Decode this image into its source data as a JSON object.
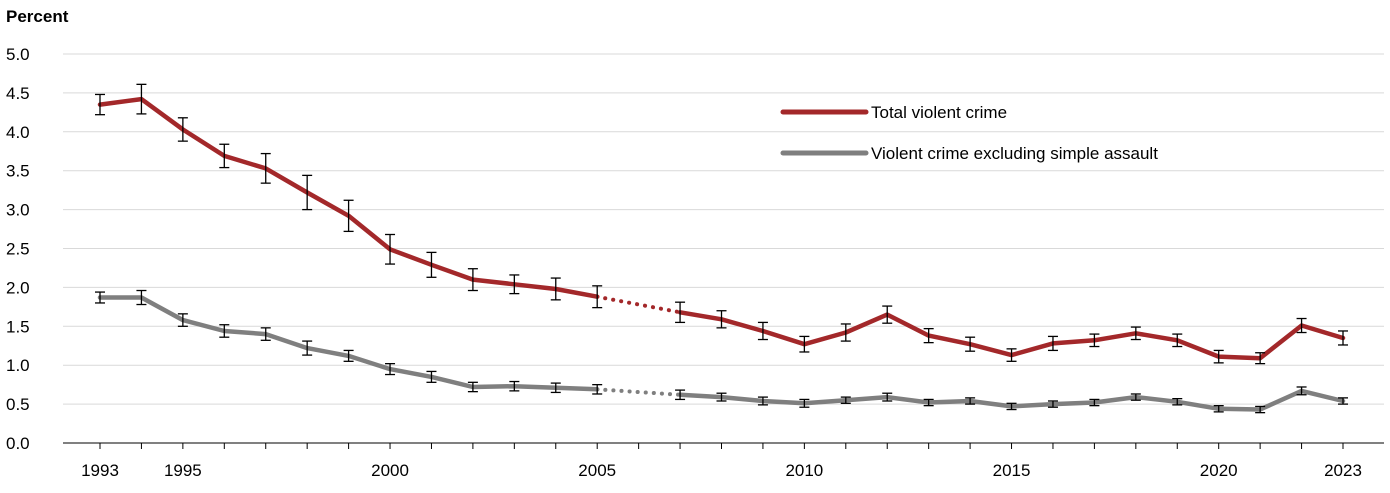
{
  "chart_data": {
    "type": "line",
    "ylabel": "Percent",
    "ylim": [
      0,
      5.0
    ],
    "yticks": [
      "0.0",
      "0.5",
      "1.0",
      "1.5",
      "2.0",
      "2.5",
      "3.0",
      "3.5",
      "4.0",
      "4.5",
      "5.0"
    ],
    "xlim": [
      1993,
      2023
    ],
    "xticks": [
      "1993",
      "1995",
      "2000",
      "2005",
      "2010",
      "2015",
      "2020",
      "2023"
    ],
    "grid": "horizontal",
    "legend_position": "top-right",
    "gap_years": [
      2006
    ],
    "error_bars": true,
    "series": [
      {
        "name": "Total violent crime",
        "color": "#a3282a",
        "points": [
          {
            "x": 1993,
            "y": 4.35,
            "lo": 4.22,
            "hi": 4.48
          },
          {
            "x": 1994,
            "y": 4.42,
            "lo": 4.23,
            "hi": 4.61
          },
          {
            "x": 1995,
            "y": 4.03,
            "lo": 3.88,
            "hi": 4.18
          },
          {
            "x": 1996,
            "y": 3.69,
            "lo": 3.54,
            "hi": 3.84
          },
          {
            "x": 1997,
            "y": 3.53,
            "lo": 3.34,
            "hi": 3.72
          },
          {
            "x": 1998,
            "y": 3.22,
            "lo": 3.0,
            "hi": 3.44
          },
          {
            "x": 1999,
            "y": 2.92,
            "lo": 2.72,
            "hi": 3.12
          },
          {
            "x": 2000,
            "y": 2.49,
            "lo": 2.3,
            "hi": 2.68
          },
          {
            "x": 2001,
            "y": 2.29,
            "lo": 2.13,
            "hi": 2.45
          },
          {
            "x": 2002,
            "y": 2.1,
            "lo": 1.96,
            "hi": 2.24
          },
          {
            "x": 2003,
            "y": 2.04,
            "lo": 1.92,
            "hi": 2.16
          },
          {
            "x": 2004,
            "y": 1.98,
            "lo": 1.84,
            "hi": 2.12
          },
          {
            "x": 2005,
            "y": 1.88,
            "lo": 1.74,
            "hi": 2.02
          },
          {
            "x": 2007,
            "y": 1.68,
            "lo": 1.55,
            "hi": 1.81
          },
          {
            "x": 2008,
            "y": 1.59,
            "lo": 1.48,
            "hi": 1.7
          },
          {
            "x": 2009,
            "y": 1.44,
            "lo": 1.33,
            "hi": 1.55
          },
          {
            "x": 2010,
            "y": 1.27,
            "lo": 1.17,
            "hi": 1.37
          },
          {
            "x": 2011,
            "y": 1.42,
            "lo": 1.31,
            "hi": 1.53
          },
          {
            "x": 2012,
            "y": 1.65,
            "lo": 1.54,
            "hi": 1.76
          },
          {
            "x": 2013,
            "y": 1.38,
            "lo": 1.29,
            "hi": 1.47
          },
          {
            "x": 2014,
            "y": 1.27,
            "lo": 1.18,
            "hi": 1.36
          },
          {
            "x": 2015,
            "y": 1.13,
            "lo": 1.05,
            "hi": 1.21
          },
          {
            "x": 2016,
            "y": 1.28,
            "lo": 1.19,
            "hi": 1.37
          },
          {
            "x": 2017,
            "y": 1.32,
            "lo": 1.24,
            "hi": 1.4
          },
          {
            "x": 2018,
            "y": 1.41,
            "lo": 1.33,
            "hi": 1.49
          },
          {
            "x": 2019,
            "y": 1.32,
            "lo": 1.24,
            "hi": 1.4
          },
          {
            "x": 2020,
            "y": 1.11,
            "lo": 1.03,
            "hi": 1.19
          },
          {
            "x": 2021,
            "y": 1.09,
            "lo": 1.02,
            "hi": 1.16
          },
          {
            "x": 2022,
            "y": 1.51,
            "lo": 1.42,
            "hi": 1.6
          },
          {
            "x": 2023,
            "y": 1.35,
            "lo": 1.26,
            "hi": 1.44
          }
        ]
      },
      {
        "name": "Violent crime excluding simple assault",
        "color": "#7f7f7f",
        "points": [
          {
            "x": 1993,
            "y": 1.87,
            "lo": 1.8,
            "hi": 1.94
          },
          {
            "x": 1994,
            "y": 1.87,
            "lo": 1.78,
            "hi": 1.96
          },
          {
            "x": 1995,
            "y": 1.58,
            "lo": 1.5,
            "hi": 1.66
          },
          {
            "x": 1996,
            "y": 1.44,
            "lo": 1.36,
            "hi": 1.52
          },
          {
            "x": 1997,
            "y": 1.4,
            "lo": 1.32,
            "hi": 1.48
          },
          {
            "x": 1998,
            "y": 1.22,
            "lo": 1.13,
            "hi": 1.31
          },
          {
            "x": 1999,
            "y": 1.12,
            "lo": 1.05,
            "hi": 1.19
          },
          {
            "x": 2000,
            "y": 0.95,
            "lo": 0.88,
            "hi": 1.02
          },
          {
            "x": 2001,
            "y": 0.85,
            "lo": 0.78,
            "hi": 0.92
          },
          {
            "x": 2002,
            "y": 0.72,
            "lo": 0.66,
            "hi": 0.78
          },
          {
            "x": 2003,
            "y": 0.73,
            "lo": 0.67,
            "hi": 0.79
          },
          {
            "x": 2004,
            "y": 0.71,
            "lo": 0.65,
            "hi": 0.77
          },
          {
            "x": 2005,
            "y": 0.69,
            "lo": 0.63,
            "hi": 0.75
          },
          {
            "x": 2007,
            "y": 0.62,
            "lo": 0.56,
            "hi": 0.68
          },
          {
            "x": 2008,
            "y": 0.59,
            "lo": 0.54,
            "hi": 0.64
          },
          {
            "x": 2009,
            "y": 0.54,
            "lo": 0.49,
            "hi": 0.59
          },
          {
            "x": 2010,
            "y": 0.51,
            "lo": 0.46,
            "hi": 0.56
          },
          {
            "x": 2011,
            "y": 0.55,
            "lo": 0.51,
            "hi": 0.59
          },
          {
            "x": 2012,
            "y": 0.59,
            "lo": 0.54,
            "hi": 0.64
          },
          {
            "x": 2013,
            "y": 0.52,
            "lo": 0.48,
            "hi": 0.56
          },
          {
            "x": 2014,
            "y": 0.54,
            "lo": 0.5,
            "hi": 0.58
          },
          {
            "x": 2015,
            "y": 0.47,
            "lo": 0.43,
            "hi": 0.51
          },
          {
            "x": 2016,
            "y": 0.5,
            "lo": 0.46,
            "hi": 0.54
          },
          {
            "x": 2017,
            "y": 0.52,
            "lo": 0.48,
            "hi": 0.56
          },
          {
            "x": 2018,
            "y": 0.59,
            "lo": 0.55,
            "hi": 0.63
          },
          {
            "x": 2019,
            "y": 0.53,
            "lo": 0.49,
            "hi": 0.57
          },
          {
            "x": 2020,
            "y": 0.44,
            "lo": 0.4,
            "hi": 0.48
          },
          {
            "x": 2021,
            "y": 0.43,
            "lo": 0.39,
            "hi": 0.47
          },
          {
            "x": 2022,
            "y": 0.67,
            "lo": 0.62,
            "hi": 0.72
          },
          {
            "x": 2023,
            "y": 0.54,
            "lo": 0.5,
            "hi": 0.58
          }
        ]
      }
    ]
  }
}
